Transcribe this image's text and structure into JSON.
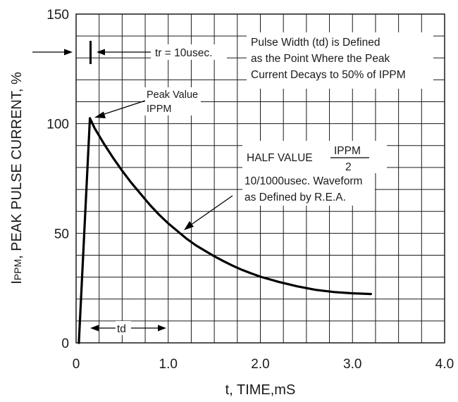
{
  "chart_data": {
    "type": "line",
    "xlabel": "t, TIME,mS",
    "ylabel_sub": "PPM",
    "ylabel_main": ", PEAK PULSE CURRENT, %",
    "xlim": [
      0,
      4.0
    ],
    "ylim": [
      0,
      150
    ],
    "xticks": [
      "0",
      "1.0",
      "2.0",
      "3.0",
      "4.0"
    ],
    "yticks": [
      "0",
      "50",
      "100",
      "150"
    ],
    "grid": true,
    "series": [
      {
        "x": [
          0.03,
          0.15,
          0.2,
          0.3,
          0.4,
          0.5,
          0.6,
          0.7,
          0.8,
          0.9,
          1.0,
          1.1,
          1.2,
          1.3,
          1.4,
          1.5,
          1.6,
          1.7,
          1.8,
          1.9,
          2.0,
          2.2,
          2.4,
          2.6,
          2.8,
          3.0,
          3.2
        ],
        "y": [
          0,
          102.5,
          98,
          91,
          84.5,
          78.5,
          73,
          68,
          63,
          58.5,
          54.5,
          51,
          47.5,
          44.5,
          42,
          39.5,
          37.3,
          35.2,
          33.3,
          31.7,
          30.2,
          27.8,
          25.8,
          24.2,
          23.2,
          22.6,
          22.3
        ]
      }
    ],
    "annotations": {
      "tr_label": "tr = 10usec.",
      "pulse_def": [
        "Pulse Width (td) is Defined",
        "as the Point Where the Peak",
        "Current Decays to 50% of IPPM"
      ],
      "peak_label": [
        "Peak Value",
        "IPPM"
      ],
      "half_value_label": "HALF VALUE",
      "half_value_numerator": "IPPM",
      "half_value_denominator": "2",
      "waveform_label": [
        "10/1000usec. Waveform",
        "as Defined by R.E.A."
      ],
      "td_label": "td"
    }
  }
}
